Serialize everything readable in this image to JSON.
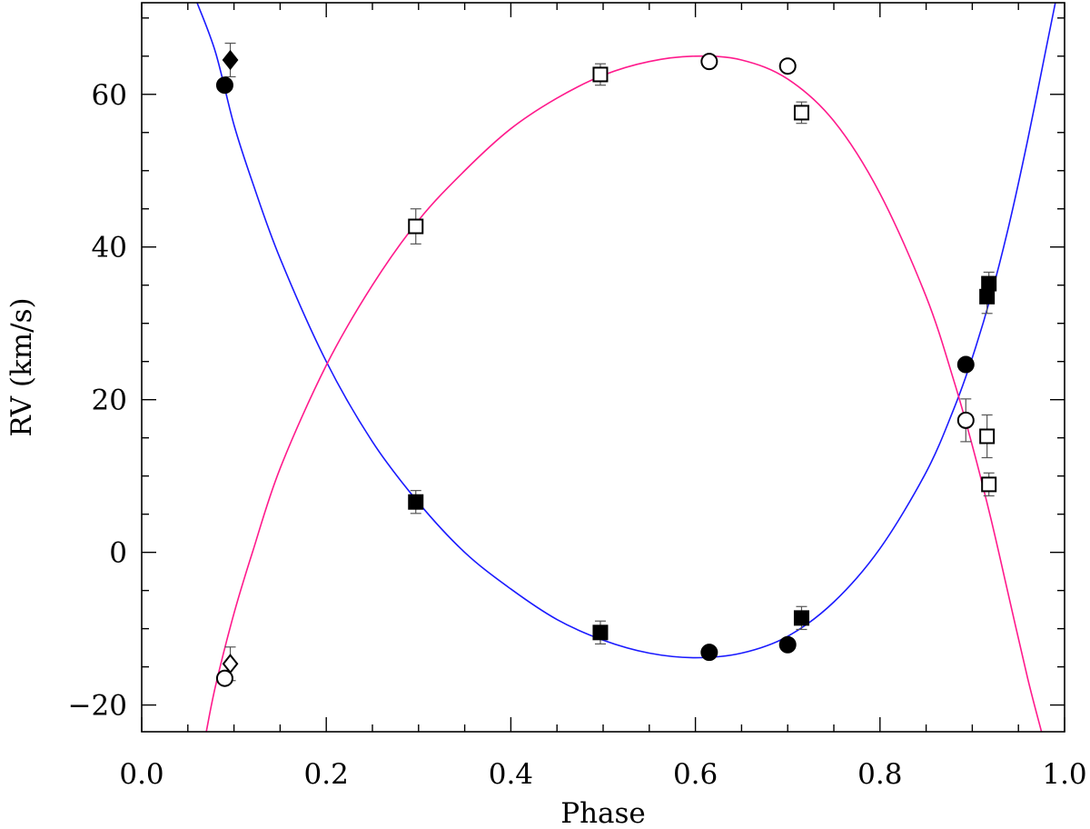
{
  "chart_data": {
    "type": "scatter",
    "title": "",
    "xlabel": "Phase",
    "ylabel": "RV (km/s)",
    "xlim": [
      0.0,
      1.0
    ],
    "ylim": [
      -23.5,
      72.0
    ],
    "x_ticks": [
      0.0,
      0.2,
      0.4,
      0.6,
      0.8,
      1.0
    ],
    "x_tick_labels": [
      "0.0",
      "0.2",
      "0.4",
      "0.6",
      "0.8",
      "1.0"
    ],
    "x_minor_step": 0.05,
    "y_ticks": [
      -20,
      0,
      20,
      40,
      60
    ],
    "y_tick_labels": [
      "−20",
      "0",
      "20",
      "40",
      "60"
    ],
    "y_minor_step": 5,
    "grid": false,
    "legend": "none",
    "fit_curves": [
      {
        "color": "#1a1aff",
        "points": [
          [
            0.06,
            72
          ],
          [
            0.08,
            65.5
          ],
          [
            0.1,
            56
          ],
          [
            0.12,
            48.5
          ],
          [
            0.15,
            38.5
          ],
          [
            0.2,
            25
          ],
          [
            0.25,
            14.5
          ],
          [
            0.3,
            6.5
          ],
          [
            0.35,
            0
          ],
          [
            0.4,
            -4.8
          ],
          [
            0.45,
            -8.8
          ],
          [
            0.5,
            -11.5
          ],
          [
            0.55,
            -13.2
          ],
          [
            0.6,
            -13.8
          ],
          [
            0.65,
            -13.2
          ],
          [
            0.7,
            -11
          ],
          [
            0.75,
            -6.5
          ],
          [
            0.8,
            0.5
          ],
          [
            0.85,
            10.5
          ],
          [
            0.88,
            18.8
          ],
          [
            0.9,
            25.5
          ],
          [
            0.92,
            33.5
          ],
          [
            0.94,
            43
          ],
          [
            0.96,
            54
          ],
          [
            0.98,
            66
          ],
          [
            0.99,
            72
          ]
        ]
      },
      {
        "color": "#ff1a8c",
        "points": [
          [
            0.07,
            -23.5
          ],
          [
            0.08,
            -17.5
          ],
          [
            0.1,
            -8
          ],
          [
            0.12,
            0
          ],
          [
            0.15,
            11
          ],
          [
            0.2,
            24.5
          ],
          [
            0.25,
            35
          ],
          [
            0.3,
            43.5
          ],
          [
            0.35,
            50
          ],
          [
            0.4,
            55.5
          ],
          [
            0.45,
            59.5
          ],
          [
            0.5,
            62.5
          ],
          [
            0.55,
            64.3
          ],
          [
            0.6,
            65
          ],
          [
            0.65,
            64.5
          ],
          [
            0.7,
            62
          ],
          [
            0.75,
            56.5
          ],
          [
            0.8,
            47
          ],
          [
            0.85,
            33.5
          ],
          [
            0.88,
            22.5
          ],
          [
            0.9,
            14
          ],
          [
            0.92,
            4.5
          ],
          [
            0.94,
            -6
          ],
          [
            0.96,
            -16.5
          ],
          [
            0.975,
            -23.5
          ]
        ]
      }
    ],
    "series": [
      {
        "marker": "filled-circle",
        "points": [
          {
            "x": 0.09,
            "y": 61.2
          },
          {
            "x": 0.615,
            "y": -13.1
          },
          {
            "x": 0.7,
            "y": -12.1
          },
          {
            "x": 0.893,
            "y": 24.6
          }
        ]
      },
      {
        "marker": "filled-square",
        "points": [
          {
            "x": 0.297,
            "y": 6.6,
            "err": 1.5
          },
          {
            "x": 0.497,
            "y": -10.5,
            "err": 1.5
          },
          {
            "x": 0.715,
            "y": -8.6,
            "err": 1.5
          },
          {
            "x": 0.916,
            "y": 33.5,
            "err": 2.2
          },
          {
            "x": 0.918,
            "y": 35.2,
            "err": 1.5
          }
        ]
      },
      {
        "marker": "filled-diamond",
        "points": [
          {
            "x": 0.096,
            "y": 64.5,
            "err": 2.2
          }
        ]
      },
      {
        "marker": "open-circle",
        "points": [
          {
            "x": 0.09,
            "y": -16.5
          },
          {
            "x": 0.615,
            "y": 64.3
          },
          {
            "x": 0.7,
            "y": 63.7
          },
          {
            "x": 0.893,
            "y": 17.3,
            "err": 2.8
          }
        ]
      },
      {
        "marker": "open-square",
        "points": [
          {
            "x": 0.297,
            "y": 42.7,
            "err": 2.3
          },
          {
            "x": 0.497,
            "y": 62.6,
            "err": 1.4
          },
          {
            "x": 0.715,
            "y": 57.6,
            "err": 1.4
          },
          {
            "x": 0.916,
            "y": 15.2,
            "err": 2.8
          },
          {
            "x": 0.918,
            "y": 8.9,
            "err": 1.5
          }
        ]
      },
      {
        "marker": "open-diamond",
        "points": [
          {
            "x": 0.096,
            "y": -14.6,
            "err": 2.2
          }
        ]
      }
    ]
  }
}
